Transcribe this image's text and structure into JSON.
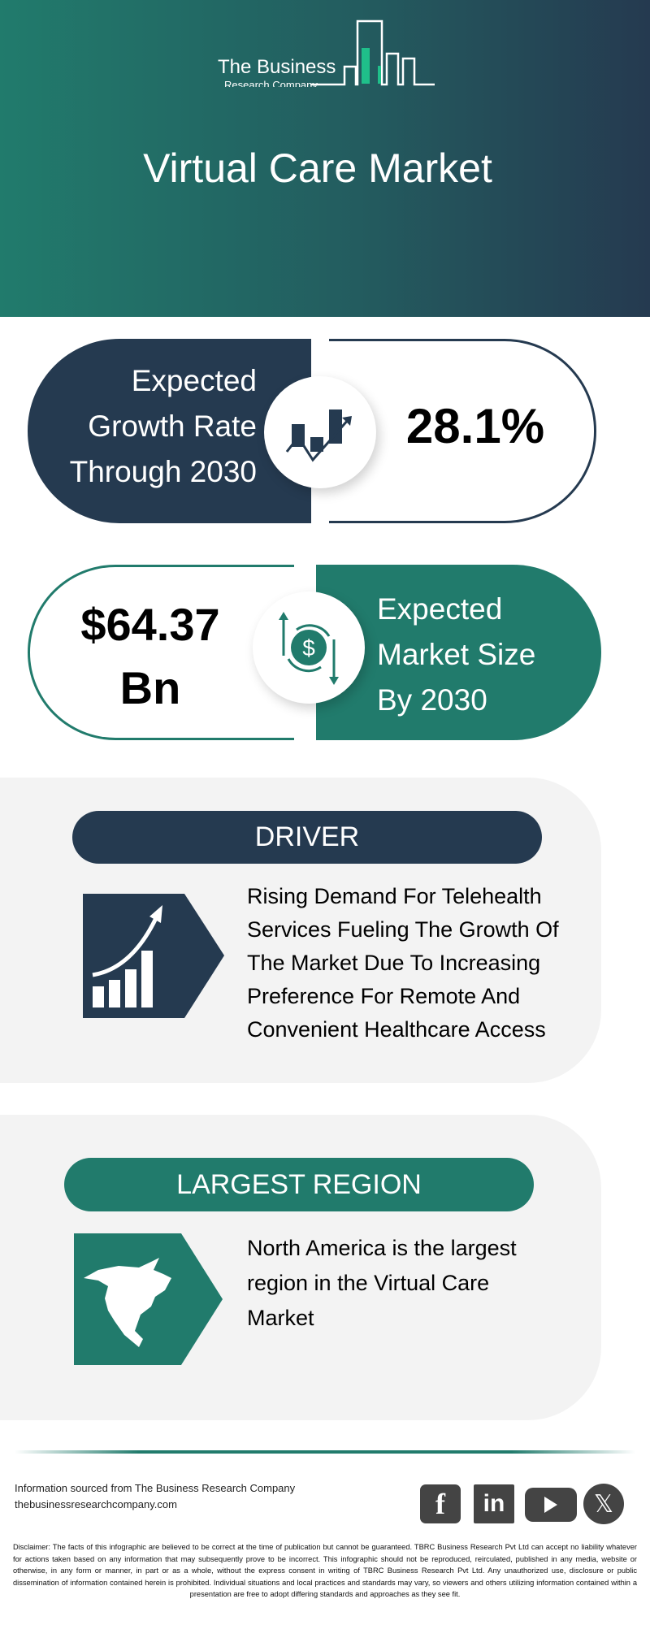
{
  "brand": {
    "line1": "The Business",
    "line2": "Research Company"
  },
  "title": "Virtual Care Market",
  "growth": {
    "label_lines": [
      "Expected",
      "Growth Rate",
      "Through 2030"
    ],
    "value": "28.1%",
    "icon": "growth-chart-icon"
  },
  "market_size": {
    "value_lines": [
      "$64.37",
      "Bn"
    ],
    "label_lines": [
      "Expected",
      "Market Size",
      "By 2030"
    ],
    "icon": "dollar-exchange-icon"
  },
  "driver": {
    "heading": "DRIVER",
    "text_lines": [
      "Rising Demand For Telehealth",
      "Services Fueling The Growth Of",
      "The Market Due To Increasing",
      "Preference For Remote And",
      "Convenient Healthcare Access"
    ],
    "icon": "rising-bar-chart-icon"
  },
  "region": {
    "heading": "LARGEST REGION",
    "text_lines": [
      "North America is the largest",
      "region in the Virtual Care",
      "Market"
    ],
    "icon": "north-america-map-icon"
  },
  "footer": {
    "source": "Information sourced from The Business Research Company",
    "website": "thebusinessresearchcompany.com",
    "social": [
      "facebook",
      "linkedin",
      "youtube",
      "x"
    ],
    "disclaimer": "Disclaimer: The facts of this infographic are believed to be correct at the time of publication but cannot be guaranteed. TBRC Business Research Pvt Ltd can accept no liability whatever for actions taken based on any information that may subsequently prove to be incorrect. This infographic should not be reproduced, reirculated, published in any media, website or otherwise, in any form or manner, in part or as a whole, without the express consent in writing of TBRC Business Research Pvt Ltd. Any unauthorized use, disclosure or public dissemination of information contained herein is prohibited. Individual situations and local practices and standards may vary, so viewers and others utilizing information contained within a presentation are free to adopt differing standards and approaches as they see fit."
  },
  "colors": {
    "navy": "#253a50",
    "teal": "#217b6c",
    "card": "#f3f3f3",
    "accent": "#1fbf8a"
  }
}
